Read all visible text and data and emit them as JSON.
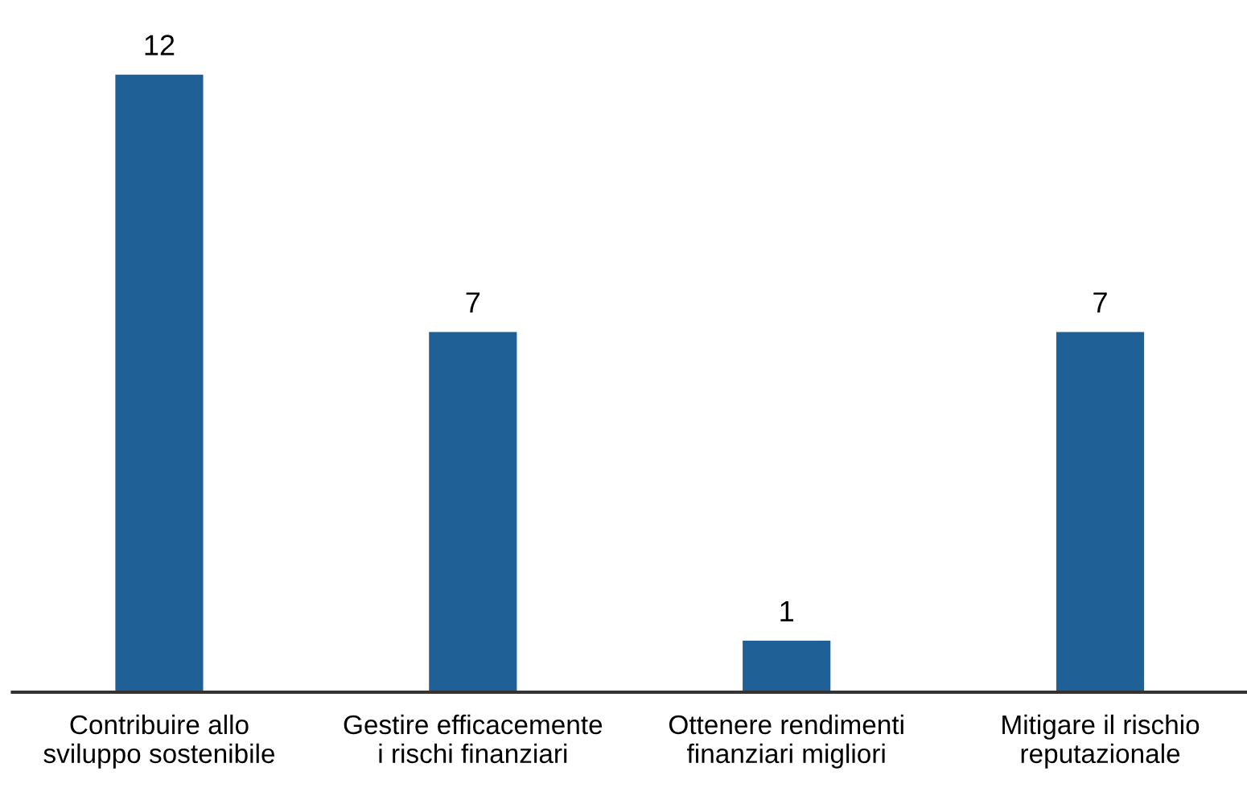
{
  "chart_data": {
    "type": "bar",
    "categories": [
      "Contribuire allo\nsviluppo sostenibile",
      "Gestire efficacemente\ni rischi finanziari",
      "Ottenere rendimenti\nfinanziari migliori",
      "Mitigare il rischio\nreputazionale"
    ],
    "values": [
      12,
      7,
      1,
      7
    ],
    "color": "#1f6096",
    "data_labels": true,
    "grid": false,
    "legend": false,
    "tick_labels": "x"
  }
}
